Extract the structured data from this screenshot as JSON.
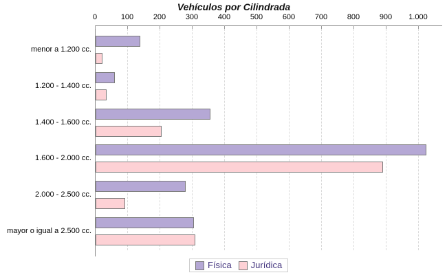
{
  "title": "Vehículos por Cilindrada",
  "chart_data": {
    "type": "bar",
    "orientation": "horizontal",
    "title": "Vehículos por Cilindrada",
    "categories": [
      "menor a 1.200 cc.",
      "1.200 - 1.400 cc.",
      "1.400 - 1.600 cc.",
      "1.600 - 2.000 cc.",
      "2.000 - 2.500 cc.",
      "mayor o igual a 2.500 cc."
    ],
    "series": [
      {
        "name": "Física",
        "color": "#b5a8d5",
        "values": [
          135,
          55,
          350,
          1020,
          275,
          300
        ]
      },
      {
        "name": "Jurídica",
        "color": "#fdd1d5",
        "values": [
          18,
          30,
          200,
          885,
          87,
          305
        ]
      }
    ],
    "x_axis": {
      "tick_labels": [
        "0",
        "100",
        "200",
        "300",
        "400",
        "500",
        "600",
        "700",
        "800",
        "900",
        "1.000"
      ],
      "tick_values": [
        0,
        100,
        200,
        300,
        400,
        500,
        600,
        700,
        800,
        900,
        1000
      ],
      "min": 0,
      "max": 1075
    },
    "ylabel": "",
    "xlabel": "",
    "grid": "vertical dashed",
    "legend_position": "bottom-center"
  },
  "legend": {
    "items": [
      {
        "label": "Física",
        "color": "#b5a8d5"
      },
      {
        "label": "Jurídica",
        "color": "#fdd1d5"
      }
    ]
  },
  "colors": {
    "fisica_fill": "#b5a8d5",
    "juridica_fill": "#fdd1d5",
    "bar_border": "#7a7a7a",
    "axis": "#888888",
    "gridline": "#d9d9d9",
    "legend_text": "#44357f",
    "legend_border": "#cccccc",
    "title_text": "#111111",
    "background": "#ffffff"
  }
}
